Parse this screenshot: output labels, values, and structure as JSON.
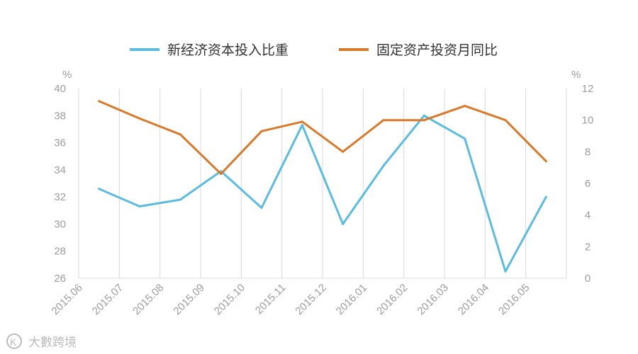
{
  "chart_data": {
    "type": "line",
    "categories": [
      "2015.06",
      "2015.07",
      "2015.08",
      "2015.09",
      "2015.10",
      "2015.11",
      "2015.12",
      "2016.01",
      "2016.02",
      "2016.03",
      "2016.04",
      "2016.05"
    ],
    "y_left": {
      "unit": "%",
      "min": 26,
      "max": 40,
      "ticks": [
        26,
        28,
        30,
        32,
        34,
        36,
        38,
        40
      ]
    },
    "y_right": {
      "unit": "%",
      "min": 0,
      "max": 12,
      "ticks": [
        0,
        2,
        4,
        6,
        8,
        10,
        12
      ]
    },
    "series": [
      {
        "name": "新经济资本投入比重",
        "axis": "left",
        "color": "#5bbcdd",
        "values": [
          32.6,
          31.3,
          31.8,
          33.9,
          31.2,
          37.3,
          30.0,
          34.3,
          38.0,
          36.3,
          26.5,
          32.0
        ]
      },
      {
        "name": "固定资产投资月同比",
        "axis": "right",
        "color": "#d9792a",
        "values": [
          11.2,
          10.1,
          9.1,
          6.6,
          9.3,
          9.9,
          8.0,
          10.0,
          10.0,
          10.9,
          10.0,
          7.4
        ]
      }
    ],
    "legend_position": "top",
    "grid": {
      "vertical": true,
      "horizontal": false
    }
  },
  "watermark": {
    "text": "大數跨境",
    "logo_text": "K"
  }
}
